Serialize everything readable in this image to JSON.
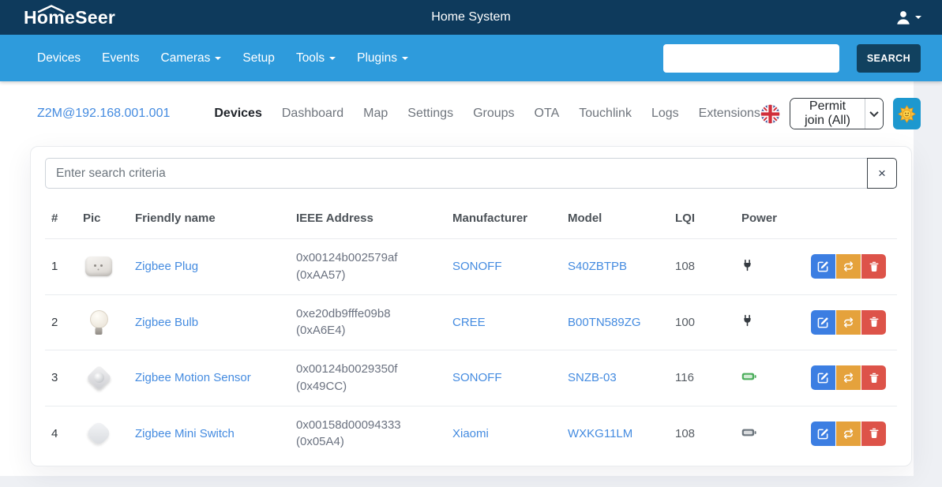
{
  "header": {
    "brand": "HomeSeer",
    "title": "Home System"
  },
  "nav": {
    "items": [
      {
        "label": "Devices",
        "caret": false
      },
      {
        "label": "Events",
        "caret": false
      },
      {
        "label": "Cameras",
        "caret": true
      },
      {
        "label": "Setup",
        "caret": false
      },
      {
        "label": "Tools",
        "caret": true
      },
      {
        "label": "Plugins",
        "caret": true
      }
    ],
    "search": {
      "value": "",
      "placeholder": ""
    },
    "search_button": "SEARCH"
  },
  "plugin_bar": {
    "connection": "Z2M@192.168.001.001",
    "tabs": [
      {
        "label": "Devices",
        "active": true
      },
      {
        "label": "Dashboard",
        "active": false
      },
      {
        "label": "Map",
        "active": false
      },
      {
        "label": "Settings",
        "active": false
      },
      {
        "label": "Groups",
        "active": false
      },
      {
        "label": "OTA",
        "active": false
      },
      {
        "label": "Touchlink",
        "active": false
      },
      {
        "label": "Logs",
        "active": false
      },
      {
        "label": "Extensions",
        "active": false
      }
    ],
    "language_icon": "uk-flag",
    "permit_join_label": "Permit join (All)",
    "theme_icon": "sun"
  },
  "table": {
    "search_placeholder": "Enter search criteria",
    "clear_button": "×",
    "headers": [
      "#",
      "Pic",
      "Friendly name",
      "IEEE Address",
      "Manufacturer",
      "Model",
      "LQI",
      "Power",
      ""
    ],
    "devices": [
      {
        "num": "1",
        "pic": "smart-plug",
        "friendly_name": "Zigbee Plug",
        "ieee": "0x00124b002579af",
        "short_addr": "(0xAA57)",
        "manufacturer": "SONOFF",
        "model": "S40ZBTPB",
        "lqi": "108",
        "power": "plug"
      },
      {
        "num": "2",
        "pic": "bulb",
        "friendly_name": "Zigbee Bulb",
        "ieee": "0xe20db9fffe09b8",
        "short_addr": "(0xA6E4)",
        "manufacturer": "CREE",
        "model": "B00TN589ZG",
        "lqi": "100",
        "power": "plug"
      },
      {
        "num": "3",
        "pic": "motion-sensor",
        "friendly_name": "Zigbee Motion Sensor",
        "ieee": "0x00124b0029350f",
        "short_addr": "(0x49CC)",
        "manufacturer": "SONOFF",
        "model": "SNZB-03",
        "lqi": "116",
        "power": "battery-ok"
      },
      {
        "num": "4",
        "pic": "mini-switch",
        "friendly_name": "Zigbee Mini Switch",
        "ieee": "0x00158d00094333",
        "short_addr": "(0x05A4)",
        "manufacturer": "Xiaomi",
        "model": "WXKG11LM",
        "lqi": "108",
        "power": "battery-muted"
      }
    ]
  },
  "colors": {
    "topbar": "#0e3a5c",
    "navbar": "#2e9bdc",
    "link": "#448be0",
    "edit_button": "#3c7ee2",
    "sync_button": "#e5a23c",
    "delete_button": "#dd5349",
    "battery_ok": "#4cae5c",
    "battery_muted": "#6c757d",
    "search_button_bg": "#11415f",
    "theme_button_bg": "#1d98cf"
  }
}
